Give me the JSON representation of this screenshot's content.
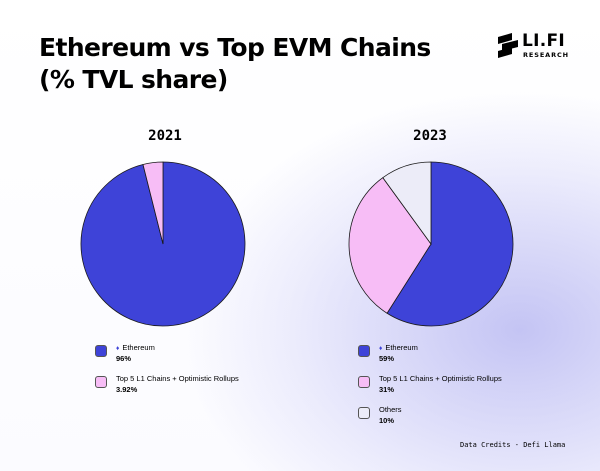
{
  "title_line1": "Ethereum vs Top EVM Chains",
  "title_line2": "(% TVL share)",
  "logo": {
    "name": "LI.FI",
    "subtitle": "RESEARCH",
    "icon": "lifi-logo-icon"
  },
  "colors": {
    "ethereum": "#3e43d8",
    "top5": "#f7bdf6",
    "others": "#ececf8"
  },
  "chart_data": [
    {
      "type": "pie",
      "title": "2021",
      "slices": [
        {
          "label": "Ethereum",
          "value": 96,
          "display": "96%",
          "color": "#3e43d8"
        },
        {
          "label": "Top 5 L1 Chains + Optimistic Rollups",
          "value": 3.92,
          "display": "3.92%",
          "color": "#f7bdf6"
        }
      ]
    },
    {
      "type": "pie",
      "title": "2023",
      "slices": [
        {
          "label": "Ethereum",
          "value": 59,
          "display": "59%",
          "color": "#3e43d8"
        },
        {
          "label": "Top 5 L1 Chains + Optimistic Rollups",
          "value": 31,
          "display": "31%",
          "color": "#f7bdf6"
        },
        {
          "label": "Others",
          "value": 10,
          "display": "10%",
          "color": "#ececf8"
        }
      ]
    }
  ],
  "credits": "Data Credits - Defi Llama"
}
